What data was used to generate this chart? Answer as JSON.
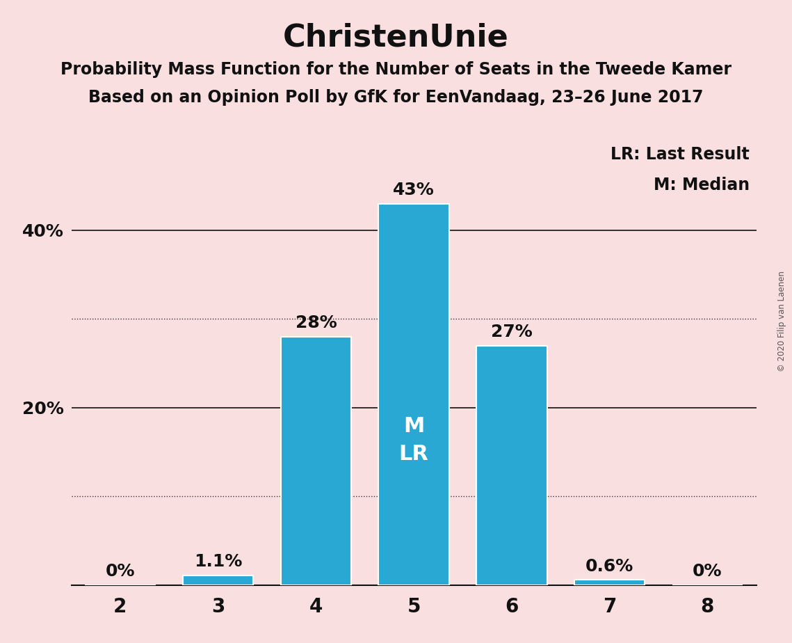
{
  "title": "ChristenUnie",
  "subtitle1": "Probability Mass Function for the Number of Seats in the Tweede Kamer",
  "subtitle2": "Based on an Opinion Poll by GfK for EenVandaag, 23–26 June 2017",
  "copyright": "© 2020 Filip van Laenen",
  "categories": [
    2,
    3,
    4,
    5,
    6,
    7,
    8
  ],
  "values": [
    0.0,
    1.1,
    28.0,
    43.0,
    27.0,
    0.6,
    0.0
  ],
  "labels": [
    "0%",
    "1.1%",
    "28%",
    "43%",
    "27%",
    "0.6%",
    "0%"
  ],
  "bar_color": "#29a8d4",
  "background_color": "#f9dfe0",
  "label_color_outside": "#111111",
  "label_color_inside": "#ffffff",
  "median_seat": 5,
  "last_result_seat": 5,
  "ylim": [
    0,
    50
  ],
  "solid_gridlines": [
    20.0,
    40.0
  ],
  "dotted_gridlines": [
    10.0,
    30.0
  ],
  "ytick_positions": [
    20,
    40
  ],
  "ytick_labels": [
    "20%",
    "40%"
  ],
  "legend_lr": "LR: Last Result",
  "legend_m": "M: Median",
  "title_fontsize": 32,
  "subtitle_fontsize": 17,
  "label_fontsize": 18,
  "ytick_fontsize": 18,
  "xtick_fontsize": 20,
  "legend_fontsize": 17,
  "bar_width": 0.72,
  "ml_label_fontsize": 22
}
